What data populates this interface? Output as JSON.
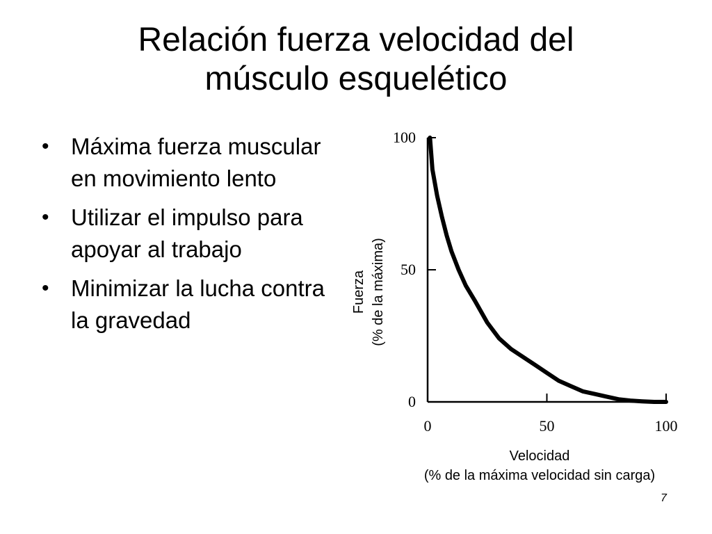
{
  "slide": {
    "title_line1": "Relación fuerza velocidad del",
    "title_line2": "músculo esquelético",
    "bullets": [
      "Máxima fuerza muscular en movimiento lento",
      "Utilizar el impulso para apoyar al trabajo",
      "Minimizar la lucha contra la gravedad"
    ],
    "bullet_glyph": "•",
    "page_number": "7"
  },
  "chart_data": {
    "type": "line",
    "title": "",
    "xlabel": "Velocidad",
    "xlabel_sub": "(% de la máxima velocidad sin carga)",
    "ylabel": "Fuerza",
    "ylabel_sub": "(% de la máxima)",
    "xlim": [
      0,
      100
    ],
    "ylim": [
      0,
      100
    ],
    "x_ticks": [
      "0",
      "50",
      "100"
    ],
    "y_ticks": [
      "100",
      "50",
      "0"
    ],
    "x_tick_values": [
      0,
      50,
      100
    ],
    "y_tick_values": [
      100,
      50,
      0
    ],
    "grid": false,
    "line_color": "#000000",
    "series": [
      {
        "x": [
          1,
          2,
          4,
          6,
          8,
          10,
          13,
          16,
          20,
          25,
          30,
          35,
          40,
          45,
          50,
          55,
          60,
          65,
          70,
          75,
          80,
          85,
          90,
          95,
          100
        ],
        "y": [
          100,
          88,
          78,
          70,
          63,
          57,
          50,
          44,
          38,
          30,
          24,
          20,
          17,
          14,
          11,
          8,
          6,
          4,
          3,
          2,
          1,
          0.5,
          0.2,
          0,
          0
        ]
      }
    ]
  }
}
